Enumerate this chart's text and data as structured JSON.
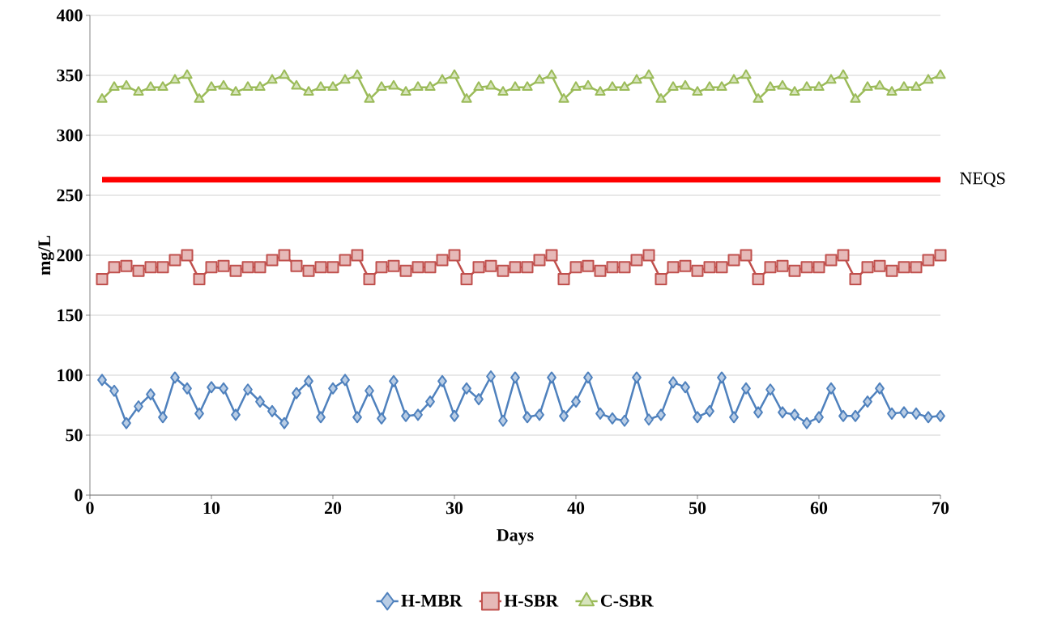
{
  "chart_data": {
    "type": "line",
    "xlabel": "Days",
    "ylabel": "mg/L",
    "x": [
      1,
      2,
      3,
      4,
      5,
      6,
      7,
      8,
      9,
      10,
      11,
      12,
      13,
      14,
      15,
      16,
      17,
      18,
      19,
      20,
      21,
      22,
      23,
      24,
      25,
      26,
      27,
      28,
      29,
      30,
      31,
      32,
      33,
      34,
      35,
      36,
      37,
      38,
      39,
      40,
      41,
      42,
      43,
      44,
      45,
      46,
      47,
      48,
      49,
      50,
      51,
      52,
      53,
      54,
      55,
      56,
      57,
      58,
      59,
      60,
      61,
      62,
      63,
      64,
      65,
      66,
      67,
      68,
      69,
      70
    ],
    "series": [
      {
        "name": "H-MBR",
        "color": "#4f81bd",
        "marker": "diamond",
        "values": [
          96,
          87,
          60,
          74,
          84,
          65,
          98,
          89,
          68,
          90,
          89,
          67,
          88,
          78,
          70,
          60,
          85,
          95,
          65,
          89,
          96,
          65,
          87,
          64,
          95,
          66,
          67,
          78,
          95,
          66,
          89,
          80,
          99,
          62,
          98,
          65,
          67,
          98,
          66,
          78,
          98,
          68,
          64,
          62,
          98,
          63,
          67,
          94,
          90,
          65,
          70,
          98,
          65,
          89,
          69,
          88,
          69,
          67,
          60,
          65,
          89,
          66,
          66,
          78,
          89,
          68,
          69,
          68,
          65,
          66
        ]
      },
      {
        "name": "H-SBR",
        "color": "#c0504d",
        "marker": "square",
        "values": [
          180,
          190,
          191,
          187,
          190,
          190,
          196,
          200,
          180,
          190,
          191,
          187,
          190,
          190,
          196,
          200,
          191,
          187,
          190,
          190,
          196,
          200,
          180,
          190,
          191,
          187,
          190,
          190,
          196,
          200,
          180,
          190,
          191,
          187,
          190,
          190,
          196,
          200,
          180,
          190,
          191,
          187,
          190,
          190,
          196,
          200,
          180,
          190,
          191,
          187,
          190,
          190,
          196,
          200,
          180,
          190,
          191,
          187,
          190,
          190,
          196,
          200,
          180,
          190,
          191,
          187,
          190,
          190,
          196,
          200
        ]
      },
      {
        "name": "C-SBR",
        "color": "#9bbb59",
        "marker": "triangle",
        "values": [
          330,
          340,
          341,
          336,
          340,
          340,
          346,
          350,
          330,
          340,
          341,
          336,
          340,
          340,
          346,
          350,
          341,
          336,
          340,
          340,
          346,
          350,
          330,
          340,
          341,
          336,
          340,
          340,
          346,
          350,
          330,
          340,
          341,
          336,
          340,
          340,
          346,
          350,
          330,
          340,
          341,
          336,
          340,
          340,
          346,
          350,
          330,
          340,
          341,
          336,
          340,
          340,
          346,
          350,
          330,
          340,
          341,
          336,
          340,
          340,
          346,
          350,
          330,
          340,
          341,
          336,
          340,
          340,
          346,
          350
        ]
      }
    ],
    "ref_lines": [
      {
        "axis": "y",
        "value": 263,
        "label": "NEQS",
        "color": "#ff0000"
      }
    ],
    "xlim": [
      0,
      70
    ],
    "xticks": [
      0,
      10,
      20,
      30,
      40,
      50,
      60,
      70
    ],
    "ylim": [
      0,
      400
    ],
    "yticks": [
      0,
      50,
      100,
      150,
      200,
      250,
      300,
      350,
      400
    ],
    "grid": "y",
    "legend": "bottom",
    "line_style": "solid"
  }
}
